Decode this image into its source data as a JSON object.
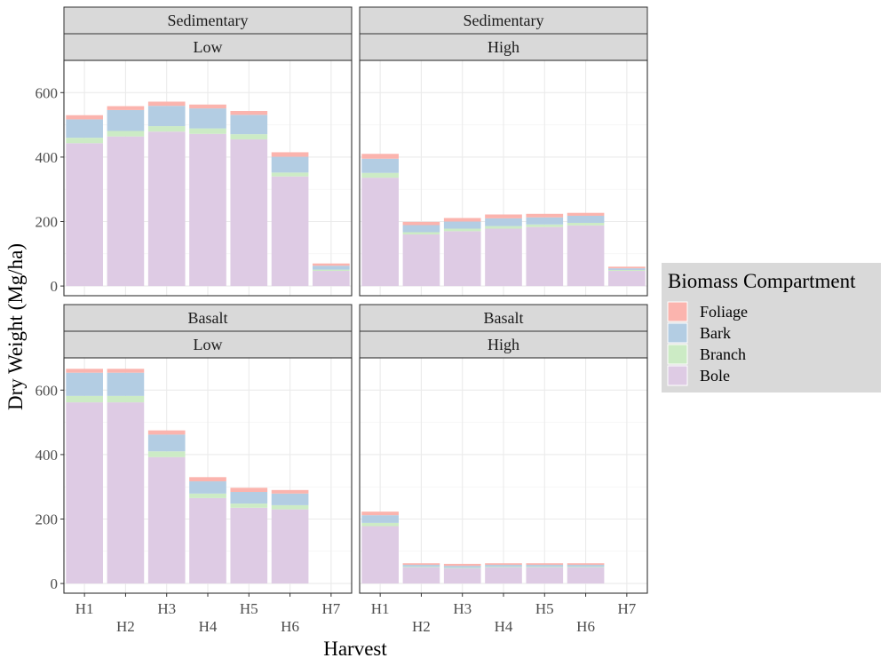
{
  "chart_data": {
    "type": "bar",
    "stacked": true,
    "facet_columns": [
      "Low",
      "High"
    ],
    "facet_rows": [
      "Sedimentary",
      "Basalt"
    ],
    "categories": [
      "H1",
      "H2",
      "H3",
      "H4",
      "H5",
      "H6",
      "H7"
    ],
    "xlabel": "Harvest",
    "ylabel": "Dry Weight (Mg/ha)",
    "ylim": [
      -30,
      700
    ],
    "yticks": [
      0,
      200,
      400,
      600
    ],
    "grid": true,
    "legend": {
      "title": "Biomass Compartment",
      "position": "right",
      "items": [
        {
          "name": "Foliage",
          "color": "#FBB4AE"
        },
        {
          "name": "Bark",
          "color": "#B3CDE3"
        },
        {
          "name": "Branch",
          "color": "#CCEBC5"
        },
        {
          "name": "Bole",
          "color": "#DECBE4"
        }
      ]
    },
    "stack_order": [
      "Bole",
      "Branch",
      "Bark",
      "Foliage"
    ],
    "panels": [
      {
        "strip_top": "Sedimentary",
        "strip_bottom": "Low",
        "series": [
          {
            "name": "Bole",
            "values": [
              443,
              464,
              479,
              472,
              455,
              340,
              47
            ]
          },
          {
            "name": "Branch",
            "values": [
              17,
              17,
              17,
              17,
              16,
              12,
              4
            ]
          },
          {
            "name": "Bark",
            "values": [
              57,
              65,
              63,
              62,
              60,
              49,
              12
            ]
          },
          {
            "name": "Foliage",
            "values": [
              13,
              12,
              13,
              12,
              12,
              14,
              7
            ]
          }
        ]
      },
      {
        "strip_top": "Sedimentary",
        "strip_bottom": "High",
        "series": [
          {
            "name": "Bole",
            "values": [
              336,
              160,
              170,
              178,
              183,
              188,
              47
            ]
          },
          {
            "name": "Branch",
            "values": [
              15,
              7,
              8,
              8,
              8,
              8,
              3
            ]
          },
          {
            "name": "Bark",
            "values": [
              44,
              22,
              22,
              24,
              22,
              22,
              5
            ]
          },
          {
            "name": "Foliage",
            "values": [
              15,
              10,
              11,
              12,
              11,
              9,
              5
            ]
          }
        ]
      },
      {
        "strip_top": "Basalt",
        "strip_bottom": "Low",
        "series": [
          {
            "name": "Bole",
            "values": [
              562,
              562,
              392,
              265,
              235,
              230,
              0
            ]
          },
          {
            "name": "Branch",
            "values": [
              20,
              20,
              18,
              14,
              13,
              13,
              0
            ]
          },
          {
            "name": "Bark",
            "values": [
              72,
              72,
              52,
              38,
              36,
              36,
              0
            ]
          },
          {
            "name": "Foliage",
            "values": [
              12,
              12,
              13,
              13,
              13,
              11,
              0
            ]
          }
        ]
      },
      {
        "strip_top": "Basalt",
        "strip_bottom": "High",
        "series": [
          {
            "name": "Bole",
            "values": [
              178,
              50,
              47,
              50,
              50,
              50,
              0
            ]
          },
          {
            "name": "Branch",
            "values": [
              10,
              2,
              2,
              2,
              2,
              2,
              0
            ]
          },
          {
            "name": "Bark",
            "values": [
              24,
              6,
              6,
              6,
              6,
              6,
              0
            ]
          },
          {
            "name": "Foliage",
            "values": [
              11,
              5,
              6,
              5,
              5,
              5,
              0
            ]
          }
        ]
      }
    ]
  }
}
